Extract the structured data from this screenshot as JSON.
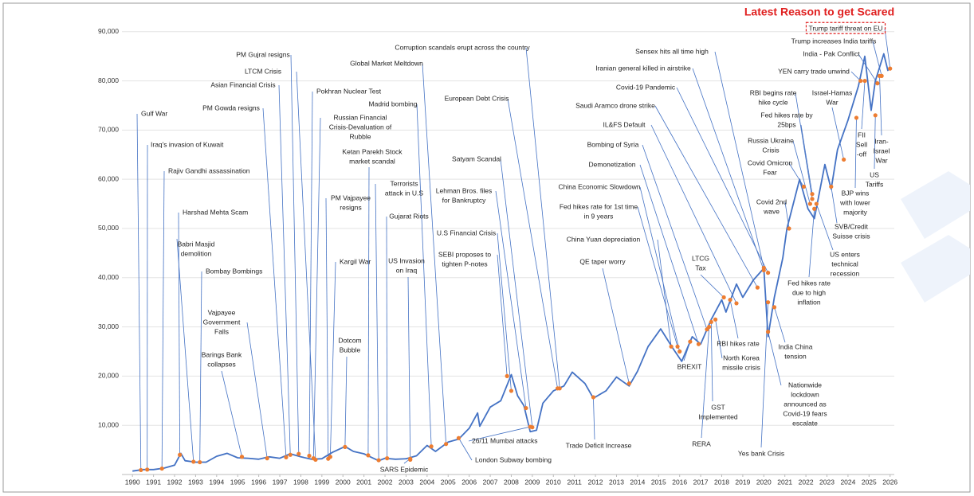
{
  "chart_data": {
    "type": "line",
    "title": "Latest Reason to get Scared",
    "x": [
      1990.0,
      1990.5,
      1991.0,
      1991.5,
      1992.0,
      1992.3,
      1992.5,
      1993.0,
      1993.5,
      1994.0,
      1994.5,
      1995.0,
      1995.5,
      1996.0,
      1996.5,
      1997.0,
      1997.5,
      1998.0,
      1998.5,
      1999.0,
      1999.5,
      2000.1,
      2000.5,
      2001.0,
      2001.3,
      2001.7,
      2002.0,
      2002.5,
      2003.0,
      2003.5,
      2004.0,
      2004.4,
      2005.0,
      2005.5,
      2006.0,
      2006.4,
      2006.5,
      2007.0,
      2007.5,
      2008.0,
      2008.3,
      2008.6,
      2008.9,
      2009.2,
      2009.5,
      2010.0,
      2010.5,
      2010.9,
      2011.5,
      2011.9,
      2012.5,
      2013.0,
      2013.6,
      2014.0,
      2014.5,
      2015.1,
      2015.7,
      2016.1,
      2016.6,
      2017.0,
      2017.5,
      2018.0,
      2018.2,
      2018.7,
      2019.0,
      2019.5,
      2020.0,
      2020.2,
      2020.5,
      2020.9,
      2021.1,
      2021.7,
      2022.1,
      2022.4,
      2022.9,
      2023.2,
      2023.5,
      2024.0,
      2024.5,
      2024.8,
      2025.1,
      2025.3,
      2025.7,
      2025.9
    ],
    "values": [
      700,
      1000,
      1000,
      1300,
      1900,
      4300,
      2800,
      2500,
      2500,
      3700,
      4300,
      3400,
      3300,
      3100,
      3600,
      3300,
      4200,
      3600,
      3100,
      3200,
      4500,
      5700,
      4700,
      4200,
      3600,
      2800,
      3300,
      3100,
      3200,
      3800,
      5900,
      4700,
      6600,
      7200,
      9400,
      12500,
      9800,
      13700,
      15000,
      20300,
      16000,
      14000,
      8700,
      9000,
      14500,
      17000,
      18000,
      20800,
      18500,
      15500,
      17000,
      19800,
      18000,
      21000,
      26000,
      29600,
      25500,
      23000,
      28000,
      26500,
      31500,
      35500,
      33000,
      38700,
      36000,
      39500,
      41900,
      28000,
      36000,
      44000,
      50000,
      60000,
      54000,
      52000,
      63000,
      58000,
      66000,
      72000,
      79000,
      85000,
      74000,
      80000,
      85500,
      82000
    ],
    "color": "#4472c4",
    "marker_color": "#ed7d31",
    "xlim": [
      1989.5,
      2026.2
    ],
    "ylim": [
      0,
      92000
    ],
    "xticks": [
      1990,
      1991,
      1992,
      1993,
      1994,
      1995,
      1996,
      1997,
      1998,
      1999,
      2000,
      2001,
      2002,
      2003,
      2004,
      2005,
      2006,
      2007,
      2008,
      2009,
      2010,
      2011,
      2012,
      2013,
      2014,
      2015,
      2016,
      2017,
      2018,
      2019,
      2020,
      2021,
      2022,
      2023,
      2024,
      2025,
      2026
    ],
    "yticks": [
      {
        "value": 10000,
        "label": "10,000"
      },
      {
        "value": 20000,
        "label": "20,000"
      },
      {
        "value": 30000,
        "label": "30,000"
      },
      {
        "value": 40000,
        "label": "40,000"
      },
      {
        "value": 50000,
        "label": "50,000"
      },
      {
        "value": 60000,
        "label": "60,000"
      },
      {
        "value": 70000,
        "label": "70,000"
      },
      {
        "value": 80000,
        "label": "80,000"
      },
      {
        "value": 90000,
        "label": "90,000"
      }
    ],
    "grid": true,
    "annotations": [
      {
        "x": 1990.4,
        "y": 900,
        "label": [
          "Gulf War"
        ]
      },
      {
        "x": 1990.7,
        "y": 1000,
        "label": [
          "Iraq's invasion of Kuwait"
        ]
      },
      {
        "x": 1991.4,
        "y": 1200,
        "label": [
          "Rajiv Gandhi assassination"
        ]
      },
      {
        "x": 1992.25,
        "y": 4000,
        "label": [
          "Harshad Mehta Scam"
        ]
      },
      {
        "x": 1992.9,
        "y": 2600,
        "label": [
          "Babri Masjid",
          "demolition"
        ]
      },
      {
        "x": 1993.2,
        "y": 2500,
        "label": [
          "Bombay Bombings"
        ]
      },
      {
        "x": 1996.4,
        "y": 3300,
        "label": [
          "Vajpayee",
          "Government",
          "Falls"
        ]
      },
      {
        "x": 1995.2,
        "y": 3600,
        "label": [
          "Barings Bank",
          "collapses"
        ]
      },
      {
        "x": 1997.9,
        "y": 4200,
        "label": [
          "PM Gujral resigns"
        ]
      },
      {
        "x": 1998.7,
        "y": 3000,
        "label": [
          "LTCM Crisis"
        ]
      },
      {
        "x": 1997.5,
        "y": 4000,
        "label": [
          "Asian Financial Crisis"
        ]
      },
      {
        "x": 1997.3,
        "y": 3500,
        "label": [
          "PM Gowda resigns"
        ]
      },
      {
        "x": 1998.4,
        "y": 3800,
        "label": [
          "Pokhran Nuclear Test"
        ]
      },
      {
        "x": 1998.6,
        "y": 3300,
        "label": [
          "Russian Financial",
          "Crisis-Devaluation of",
          "Rubble"
        ]
      },
      {
        "x": 1999.3,
        "y": 3200,
        "label": [
          "PM Vajpayee",
          "resigns"
        ]
      },
      {
        "x": 1999.4,
        "y": 3600,
        "label": [
          "Kargil War"
        ]
      },
      {
        "x": 2000.1,
        "y": 5600,
        "label": [
          "Dotcom",
          "Bubble"
        ]
      },
      {
        "x": 2001.2,
        "y": 3900,
        "label": [
          "Ketan Parekh Stock",
          "market scandal"
        ]
      },
      {
        "x": 2001.7,
        "y": 2900,
        "label": [
          "Terrorists",
          "attack in U.S"
        ]
      },
      {
        "x": 2002.1,
        "y": 3300,
        "label": [
          "Gujarat Riots"
        ]
      },
      {
        "x": 2003.2,
        "y": 3000,
        "label": [
          "US Invasion",
          "on Iraq"
        ]
      },
      {
        "x": 2003.2,
        "y": 3200,
        "label": [
          "SARS Epidemic"
        ]
      },
      {
        "x": 2004.9,
        "y": 6200,
        "label": [
          "Global Market Meltdown"
        ]
      },
      {
        "x": 2004.2,
        "y": 5700,
        "label": [
          "Madrid bombing"
        ]
      },
      {
        "x": 2010.3,
        "y": 17500,
        "label": [
          "Corruption scandals erupt across the country"
        ]
      },
      {
        "x": 2010.2,
        "y": 17500,
        "label": [
          "European Debt Crisis"
        ]
      },
      {
        "x": 2009.0,
        "y": 9600,
        "label": [
          "Satyam Scandal"
        ]
      },
      {
        "x": 2008.7,
        "y": 13500,
        "label": [
          "Lehman Bros. files",
          "for Bankruptcy"
        ]
      },
      {
        "x": 2008.0,
        "y": 17000,
        "label": [
          "U.S Financial Crisis"
        ]
      },
      {
        "x": 2007.8,
        "y": 20000,
        "label": [
          "SEBI proposes to",
          "tighten P-notes"
        ]
      },
      {
        "x": 2008.9,
        "y": 9700,
        "label": [
          "26/11 Mumbai attacks"
        ]
      },
      {
        "x": 2005.5,
        "y": 7400,
        "label": [
          "London Subway bombing"
        ]
      },
      {
        "x": 2011.9,
        "y": 15700,
        "label": [
          "Trade Deficit Increase"
        ]
      },
      {
        "x": 2013.6,
        "y": 18500,
        "label": [
          "QE taper worry"
        ]
      },
      {
        "x": 2015.6,
        "y": 26000,
        "label": [
          "China Yuan depreciation"
        ]
      },
      {
        "x": 2015.9,
        "y": 26000,
        "label": [
          "Fed hikes rate for 1st time",
          "in 9 years"
        ]
      },
      {
        "x": 2016.0,
        "y": 25000,
        "label": [
          "China Economic Slowdown"
        ]
      },
      {
        "x": 2016.9,
        "y": 26500,
        "label": [
          "Demonetization"
        ]
      },
      {
        "x": 2017.3,
        "y": 29500,
        "label": [
          "Bombing of Syria"
        ]
      },
      {
        "x": 2018.7,
        "y": 34800,
        "label": [
          "IL&FS Default"
        ]
      },
      {
        "x": 2019.7,
        "y": 38000,
        "label": [
          "Saudi Aramco drone strike"
        ]
      },
      {
        "x": 2020.2,
        "y": 41000,
        "label": [
          "Covid-19 Pandemic"
        ]
      },
      {
        "x": 2020.0,
        "y": 41500,
        "label": [
          "Iranian general killed in airstrike"
        ]
      },
      {
        "x": 2020.0,
        "y": 42000,
        "label": [
          "Sensex hits all time high"
        ]
      },
      {
        "x": 2016.5,
        "y": 27000,
        "label": [
          "BREXIT"
        ]
      },
      {
        "x": 2018.1,
        "y": 36000,
        "label": [
          "LTCG",
          "Tax"
        ]
      },
      {
        "x": 2017.7,
        "y": 31500,
        "label": [
          "North Korea",
          "missile crisis"
        ]
      },
      {
        "x": 2018.4,
        "y": 35500,
        "label": [
          "RBI hikes rate"
        ]
      },
      {
        "x": 2017.5,
        "y": 31000,
        "label": [
          "GST",
          "Implemented"
        ]
      },
      {
        "x": 2017.4,
        "y": 30000,
        "label": [
          "RERA"
        ]
      },
      {
        "x": 2020.2,
        "y": 35000,
        "label": [
          "Yes bank Crisis"
        ]
      },
      {
        "x": 2020.2,
        "y": 29000,
        "label": [
          "Nationwide",
          "lockdown",
          "announced as",
          "Covid-19 fears",
          "escalate"
        ]
      },
      {
        "x": 2020.5,
        "y": 34000,
        "label": [
          "India China",
          "tension"
        ]
      },
      {
        "x": 2022.4,
        "y": 54000,
        "label": [
          "Fed hikes rate",
          "due to high",
          "inflation"
        ]
      },
      {
        "x": 2022.5,
        "y": 55000,
        "label": [
          "US enters",
          "technical",
          "recession"
        ]
      },
      {
        "x": 2023.2,
        "y": 58500,
        "label": [
          "SVB/Credit",
          "Suisse crisis"
        ]
      },
      {
        "x": 2024.4,
        "y": 72500,
        "label": [
          "BJP wins",
          "with lower",
          "majority"
        ]
      },
      {
        "x": 2025.3,
        "y": 73000,
        "label": [
          "US",
          "Tariffs"
        ]
      },
      {
        "x": 2025.5,
        "y": 81000,
        "label": [
          "Iran-",
          "Israel",
          "War"
        ]
      },
      {
        "x": 2024.8,
        "y": 80000,
        "label": [
          "FII",
          "Sell",
          "-off"
        ]
      },
      {
        "x": 2021.2,
        "y": 50000,
        "label": [
          "Covid 2nd",
          "wave"
        ]
      },
      {
        "x": 2021.9,
        "y": 58500,
        "label": [
          "Covid Omicron",
          "Fear"
        ]
      },
      {
        "x": 2022.2,
        "y": 55000,
        "label": [
          "Russia Ukraine",
          "Crisis"
        ]
      },
      {
        "x": 2022.3,
        "y": 57000,
        "label": [
          "Fed hikes rate by",
          "25bps"
        ]
      },
      {
        "x": 2022.3,
        "y": 56000,
        "label": [
          "RBI begins rate",
          "hike cycle"
        ]
      },
      {
        "x": 2023.8,
        "y": 64000,
        "label": [
          "Israel-Hamas",
          "War"
        ]
      },
      {
        "x": 2024.6,
        "y": 80000,
        "label": [
          "YEN carry trade unwind"
        ]
      },
      {
        "x": 2025.4,
        "y": 79500,
        "label": [
          "India - Pak Conflict"
        ]
      },
      {
        "x": 2025.6,
        "y": 81000,
        "label": [
          "Trump increases India tariffs"
        ]
      },
      {
        "x": 2026.0,
        "y": 82500,
        "label": [
          "Trump tariff threat on EU"
        ]
      }
    ]
  }
}
